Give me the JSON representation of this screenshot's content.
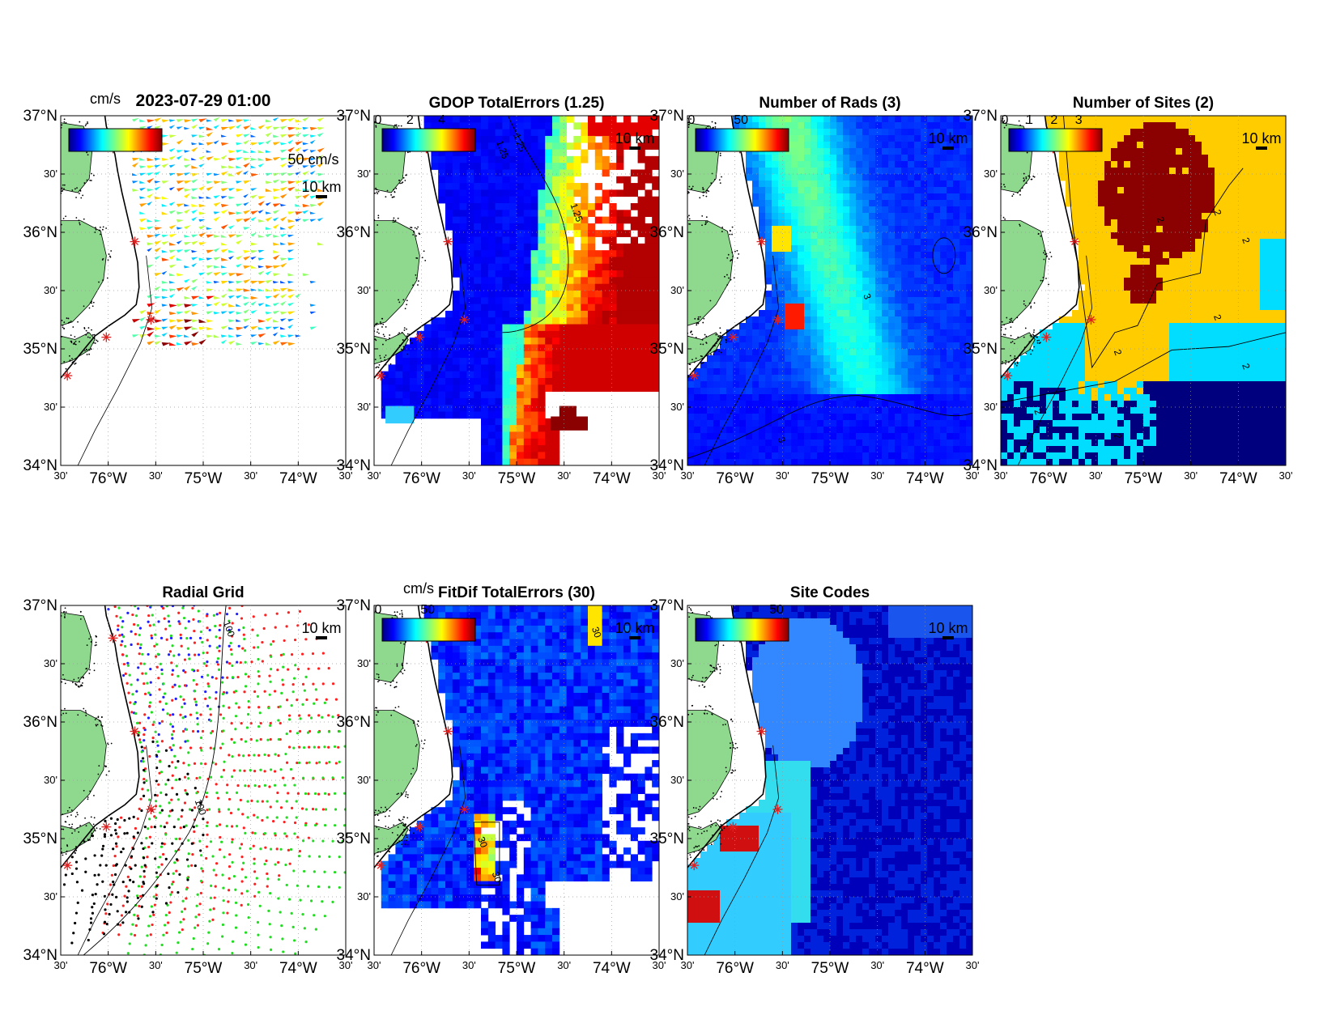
{
  "figure_timestamp": "2023-07-29 01:00",
  "colors": {
    "land": "#8fd98f",
    "site_marker": "#e02020",
    "ocean_white": "#ffffff",
    "jet_low": "#00007f",
    "jet_high": "#7f0000"
  },
  "axes": {
    "lat_labels": [
      "37°N",
      "30'",
      "36°N",
      "30'",
      "35°N",
      "30'",
      "34°N"
    ],
    "lon_labels": [
      "30'",
      "76°W",
      "30'",
      "75°W",
      "30'",
      "74°W",
      "30'"
    ],
    "lat_range": [
      34,
      37
    ],
    "lon_range": [
      -76.5,
      -73.5
    ],
    "grid": "dotted"
  },
  "panels": [
    {
      "id": "currents",
      "title": "2023-07-29 01:00",
      "colorbar": {
        "unit_label": "cm/s",
        "tick_labels": []
      },
      "scale_vector_label": "50 cm/s",
      "scale_bar_label": "10 km",
      "contour_labels": []
    },
    {
      "id": "gdop",
      "title": "GDOP TotalErrors (1.25)",
      "colorbar": {
        "unit_label": "",
        "tick_labels": [
          "0",
          "2",
          "4"
        ]
      },
      "scale_bar_label": "10 km",
      "contour_labels": [
        "1.25",
        "1.25",
        "1.25"
      ]
    },
    {
      "id": "rads",
      "title": "Number of Rads (3)",
      "colorbar": {
        "unit_label": "",
        "tick_labels": [
          "0",
          "50"
        ]
      },
      "scale_bar_label": "10 km",
      "contour_labels": [
        "3",
        "3"
      ]
    },
    {
      "id": "sites",
      "title": "Number of Sites (2)",
      "colorbar": {
        "unit_label": "",
        "tick_labels": [
          "0",
          "1",
          "2",
          "3"
        ]
      },
      "scale_bar_label": "10 km",
      "contour_labels": [
        "2",
        "2",
        "2",
        "2",
        "2",
        "2",
        "2",
        "2"
      ]
    },
    {
      "id": "radial",
      "title": "Radial Grid",
      "colorbar": null,
      "scale_bar_label": "10 km",
      "contour_labels": [
        "100",
        "100"
      ]
    },
    {
      "id": "fitdif",
      "title": "FitDif TotalErrors (30)",
      "colorbar": {
        "unit_label": "cm/s",
        "tick_labels": [
          "0",
          "50"
        ]
      },
      "scale_bar_label": "10 km",
      "contour_labels": [
        "30",
        "30",
        "30"
      ]
    },
    {
      "id": "sitecodes",
      "title": "Site Codes",
      "colorbar": {
        "unit_label": "",
        "tick_labels": [
          "50"
        ]
      },
      "scale_bar_label": "10 km",
      "contour_labels": []
    }
  ],
  "site_markers": [
    {
      "lon": -75.95,
      "lat": 36.72
    },
    {
      "lon": -75.72,
      "lat": 35.92
    },
    {
      "lon": -75.55,
      "lat": 35.25
    },
    {
      "lon": -76.02,
      "lat": 35.1
    },
    {
      "lon": -76.43,
      "lat": 34.77
    }
  ]
}
